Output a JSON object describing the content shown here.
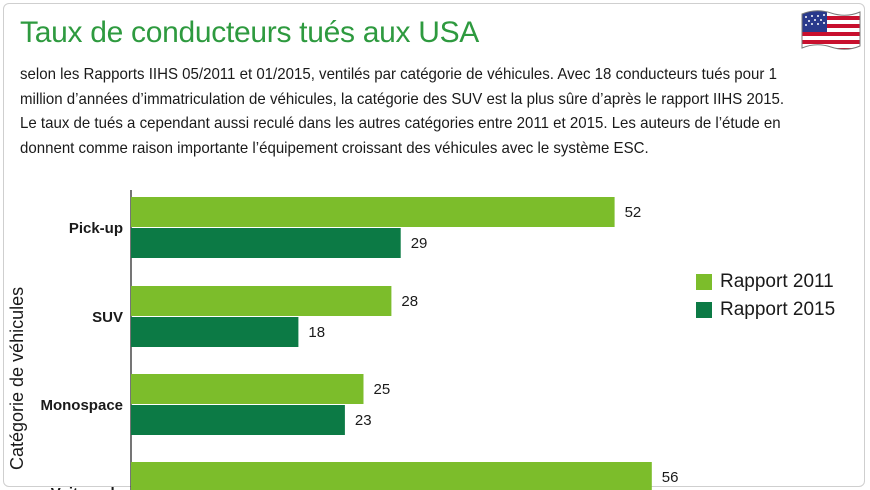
{
  "title": "Taux de conducteurs tués aux USA",
  "description": "selon les Rapports IIHS 05/2011 et 01/2015, ventilés par catégorie de véhicules. Avec 18 conducteurs tués pour 1 million d’années d’immatriculation de véhicules, la catégorie des SUV est la plus sûre d’après le rapport IIHS 2015. Le taux de tués a cependant aussi reculé dans les autres catégories entre 2011 et 2015. Les auteurs de l’étude en donnent comme raison importante l’équipement croissant des véhicules avec le système ESC.",
  "colors": {
    "title": "#2e9a3f",
    "series_2011": "#7cbd2b",
    "series_2015": "#0c7a45"
  },
  "chart_data": {
    "type": "bar",
    "orientation": "horizontal",
    "categories": [
      "Pick-up",
      "SUV",
      "Monospace",
      "Voiture de"
    ],
    "series": [
      {
        "name": "Rapport 2011",
        "values": [
          52,
          28,
          25,
          56
        ]
      },
      {
        "name": "Rapport 2015",
        "values": [
          29,
          18,
          23,
          null
        ]
      }
    ],
    "ylabel": "Catégorie de véhicules",
    "xlim": [
      0,
      60
    ],
    "grid": false,
    "legend_position": "right"
  }
}
